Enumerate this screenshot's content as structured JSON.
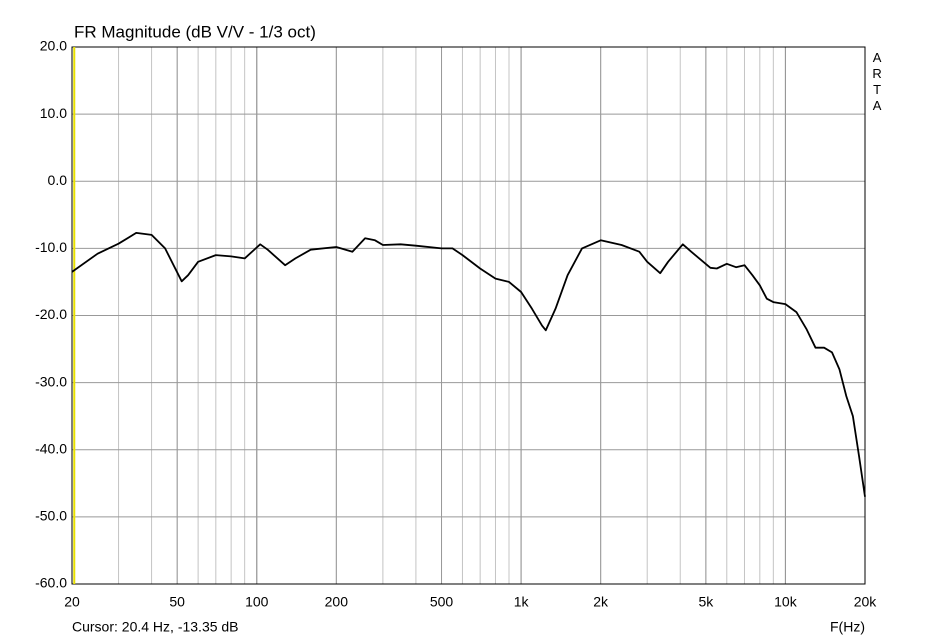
{
  "chart_data": {
    "type": "line",
    "title": "FR Magnitude (dB V/V - 1/3 oct)",
    "x_label": "F(Hz)",
    "watermark": "ARTA",
    "cursor": {
      "text": "Cursor: 20.4 Hz, -13.35 dB",
      "x": 20.4,
      "color": "#e8e000"
    },
    "x_scale": "log",
    "grid": true,
    "minor_grid": true,
    "x": [
      20,
      25,
      30,
      35,
      40,
      45,
      52,
      55,
      60,
      70,
      80,
      90,
      103,
      110,
      128,
      140,
      160,
      200,
      230,
      257,
      280,
      300,
      350,
      400,
      500,
      550,
      600,
      700,
      800,
      900,
      1000,
      1100,
      1200,
      1240,
      1350,
      1500,
      1700,
      2000,
      2400,
      2800,
      3000,
      3360,
      3600,
      4090,
      4400,
      5200,
      5500,
      6000,
      6500,
      7000,
      7500,
      8000,
      8500,
      9000,
      10000,
      11000,
      12000,
      13000,
      14000,
      15000,
      16000,
      17000,
      18000,
      19000,
      20000
    ],
    "series": [
      {
        "name": "FR",
        "color": "#000000",
        "values": [
          -13.5,
          -10.8,
          -9.3,
          -7.7,
          -8.0,
          -10.0,
          -14.9,
          -14.0,
          -12.0,
          -11.0,
          -11.2,
          -11.5,
          -9.4,
          -10.2,
          -12.5,
          -11.5,
          -10.2,
          -9.8,
          -10.5,
          -8.5,
          -8.8,
          -9.5,
          -9.4,
          -9.6,
          -10.0,
          -10.0,
          -11.0,
          -13.0,
          -14.5,
          -15.0,
          -16.5,
          -19.0,
          -21.5,
          -22.2,
          -19.0,
          -14.0,
          -10.0,
          -8.8,
          -9.5,
          -10.5,
          -12.0,
          -13.7,
          -12.0,
          -9.4,
          -10.5,
          -12.9,
          -13.0,
          -12.3,
          -12.8,
          -12.5,
          -14.0,
          -15.5,
          -17.5,
          -18.0,
          -18.3,
          -19.5,
          -22.0,
          -24.8,
          -24.8,
          -25.5,
          -28.0,
          -32.0,
          -35.0,
          -41.0,
          -47.0
        ]
      }
    ],
    "xlim": [
      20,
      20000
    ],
    "xticks": [
      20,
      50,
      100,
      200,
      500,
      {
        "value": 1000,
        "label": "1k"
      },
      {
        "value": 2000,
        "label": "2k"
      },
      {
        "value": 5000,
        "label": "5k"
      },
      {
        "value": 10000,
        "label": "10k"
      },
      {
        "value": 20000,
        "label": "20k"
      }
    ],
    "ylim": [
      -60,
      20
    ],
    "yticks": [
      {
        "value": -60,
        "label": "-60.0"
      },
      {
        "value": -50,
        "label": "-50.0"
      },
      {
        "value": -40,
        "label": "-40.0"
      },
      {
        "value": -30,
        "label": "-30.0"
      },
      {
        "value": -20,
        "label": "-20.0"
      },
      {
        "value": -10,
        "label": "-10.0"
      },
      {
        "value": 0,
        "label": "0.0"
      },
      {
        "value": 10,
        "label": "10.0"
      },
      {
        "value": 20,
        "label": "20.0"
      }
    ]
  }
}
